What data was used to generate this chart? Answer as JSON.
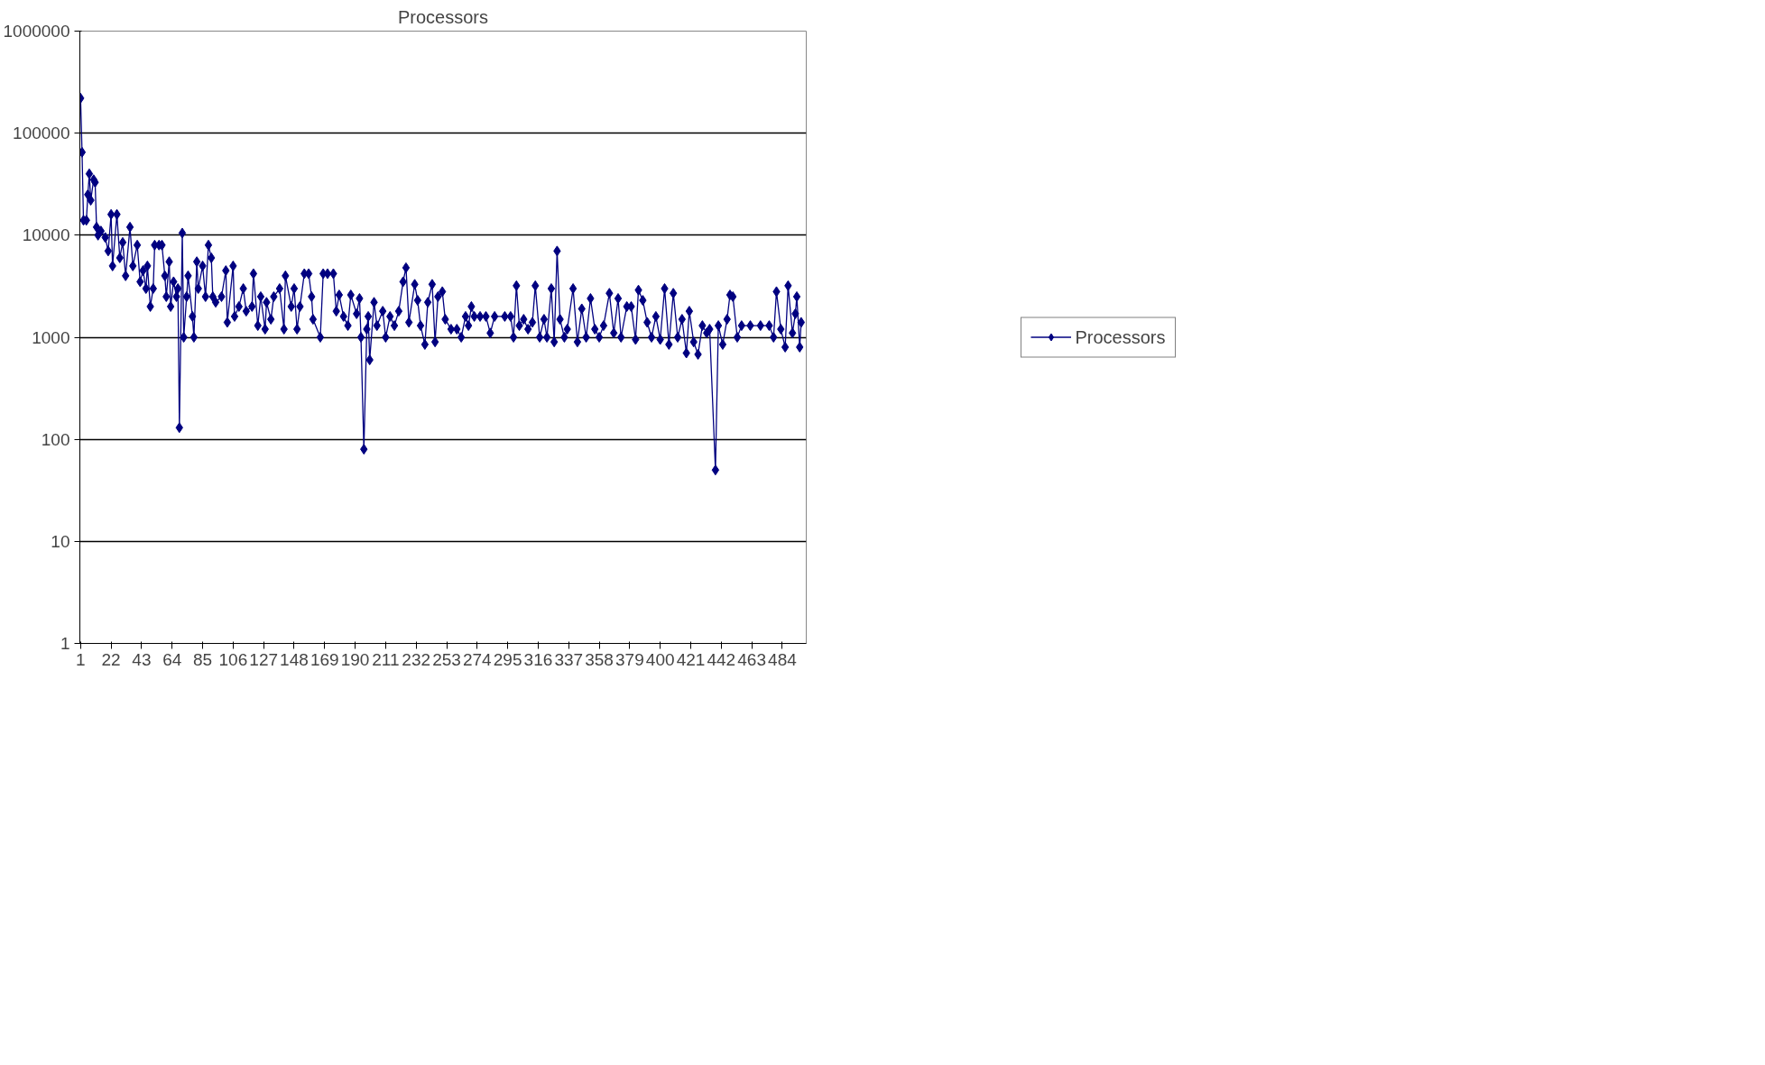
{
  "chart_data": {
    "type": "line",
    "title": "Processors",
    "x": [
      1,
      2,
      3,
      5,
      6,
      7,
      8,
      10,
      11,
      12,
      13,
      15,
      18,
      20,
      22,
      23,
      26,
      28,
      30,
      32,
      35,
      37,
      40,
      42,
      44,
      46,
      47,
      49,
      51,
      52,
      55,
      57,
      59,
      60,
      62,
      63,
      65,
      67,
      68,
      69,
      71,
      72,
      74,
      75,
      78,
      79,
      81,
      82,
      85,
      87,
      89,
      91,
      92,
      94,
      98,
      101,
      102,
      106,
      107,
      110,
      113,
      115,
      119,
      120,
      123,
      125,
      128,
      129,
      132,
      134,
      138,
      141,
      142,
      146,
      148,
      150,
      152,
      155,
      158,
      160,
      161,
      166,
      168,
      171,
      175,
      177,
      179,
      182,
      185,
      187,
      191,
      193,
      194,
      196,
      198,
      199,
      200,
      203,
      205,
      209,
      211,
      214,
      217,
      220,
      223,
      225,
      227,
      231,
      233,
      235,
      238,
      240,
      243,
      245,
      247,
      250,
      252,
      256,
      260,
      263,
      266,
      268,
      270,
      272,
      276,
      280,
      283,
      286,
      293,
      297,
      299,
      301,
      303,
      306,
      309,
      312,
      314,
      317,
      320,
      322,
      325,
      327,
      329,
      331,
      334,
      336,
      340,
      343,
      346,
      349,
      352,
      355,
      358,
      361,
      365,
      368,
      371,
      373,
      377,
      380,
      383,
      385,
      388,
      391,
      394,
      397,
      400,
      403,
      406,
      409,
      412,
      415,
      418,
      420,
      423,
      426,
      429,
      432,
      434,
      438,
      440,
      443,
      446,
      448,
      450,
      453,
      456,
      462,
      469,
      475,
      478,
      480,
      483,
      486,
      488,
      491,
      493,
      494,
      496,
      497
    ],
    "series": [
      {
        "name": "Processors",
        "color": "#000080",
        "values": [
          220000,
          65000,
          14000,
          14000,
          25000,
          40000,
          22000,
          35000,
          33000,
          12000,
          10000,
          11000,
          9500,
          7000,
          16000,
          5000,
          16000,
          6000,
          8500,
          4000,
          12000,
          5000,
          8000,
          3500,
          4500,
          3000,
          5000,
          2000,
          3000,
          8000,
          8000,
          8000,
          4000,
          2500,
          5500,
          2000,
          3500,
          2500,
          3000,
          130,
          10500,
          1000,
          2500,
          4000,
          1600,
          1000,
          5500,
          3000,
          5000,
          2500,
          8000,
          6000,
          2500,
          2200,
          2500,
          4500,
          1400,
          5000,
          1600,
          2000,
          3000,
          1800,
          2000,
          4200,
          1300,
          2500,
          1200,
          2200,
          1500,
          2500,
          3000,
          1200,
          4000,
          2000,
          3000,
          1200,
          2000,
          4200,
          4200,
          2500,
          1500,
          1000,
          4200,
          4200,
          4200,
          1800,
          2600,
          1600,
          1300,
          2600,
          1700,
          2400,
          1000,
          80,
          1200,
          1600,
          600,
          2200,
          1300,
          1800,
          1000,
          1600,
          1300,
          1800,
          3500,
          4800,
          1400,
          3300,
          2300,
          1300,
          850,
          2200,
          3300,
          900,
          2500,
          2800,
          1500,
          1200,
          1200,
          1000,
          1600,
          1300,
          2000,
          1600,
          1600,
          1600,
          1100,
          1600,
          1600,
          1600,
          1000,
          3200,
          1300,
          1500,
          1200,
          1400,
          3200,
          1000,
          1500,
          1000,
          3000,
          900,
          7000,
          1500,
          1000,
          1200,
          3000,
          900,
          1900,
          1000,
          2400,
          1200,
          1000,
          1300,
          2700,
          1100,
          2400,
          1000,
          2000,
          2000,
          950,
          2900,
          2300,
          1400,
          1000,
          1600,
          950,
          3000,
          850,
          2700,
          1000,
          1500,
          700,
          1800,
          900,
          680,
          1300,
          1100,
          1200,
          50,
          1300,
          850,
          1500,
          2600,
          2500,
          1000,
          1300,
          1300,
          1300,
          1300,
          1000,
          2800,
          1200,
          800,
          3200,
          1100,
          1700,
          2500,
          800,
          1400
        ]
      }
    ],
    "xlim": [
      0.5,
      500.5
    ],
    "xticks": [
      1,
      22,
      43,
      64,
      85,
      106,
      127,
      148,
      169,
      190,
      211,
      232,
      253,
      274,
      295,
      316,
      337,
      358,
      379,
      400,
      421,
      442,
      463,
      484
    ],
    "ylim": [
      1,
      1000000
    ],
    "yticks": [
      1,
      10,
      100,
      1000,
      10000,
      100000,
      1000000
    ],
    "log": "y",
    "grid": "y",
    "legend": "right",
    "marker": "diamond",
    "line_style": "solid"
  }
}
